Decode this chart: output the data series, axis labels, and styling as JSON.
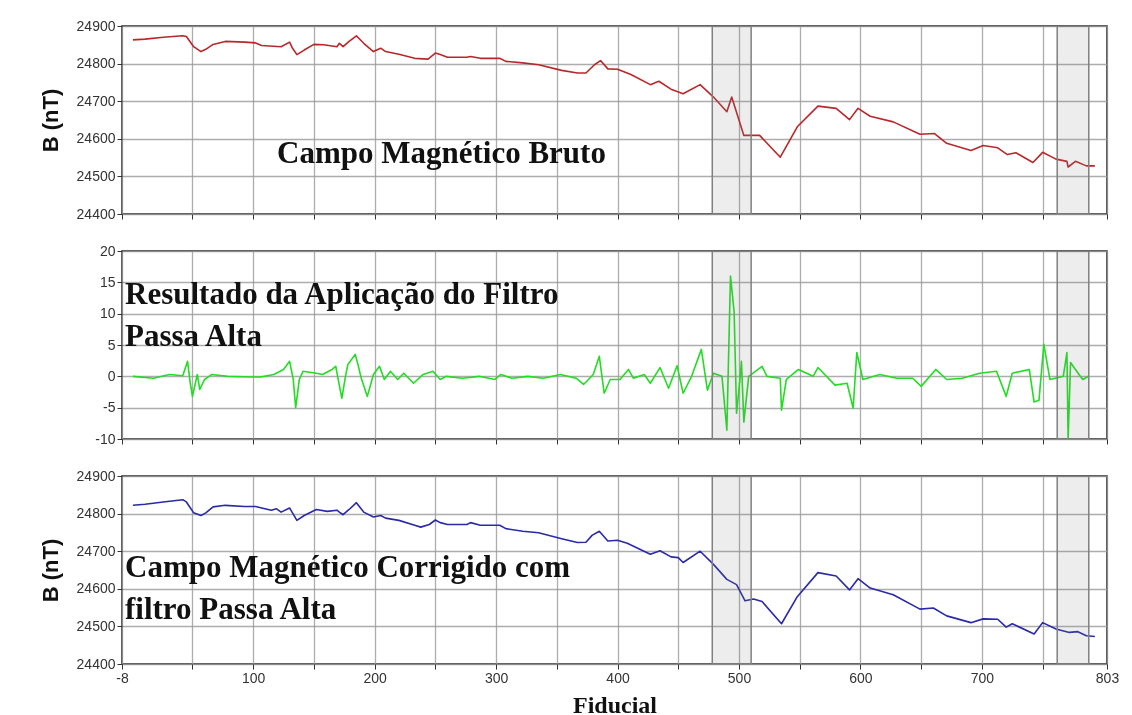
{
  "chart_data": [
    {
      "type": "line",
      "ylabel": "B (nT)",
      "annotations": [
        "Campo Magnético Bruto"
      ],
      "grid": true,
      "tick_labels": "y",
      "xlim": [
        -8,
        803
      ],
      "xticks": [
        -8,
        {
          "value": 50,
          "label": null
        },
        100,
        {
          "value": 150,
          "label": null
        },
        200,
        {
          "value": 250,
          "label": null
        },
        300,
        {
          "value": 350,
          "label": null
        },
        400,
        {
          "value": 450,
          "label": null
        },
        500,
        {
          "value": 550,
          "label": null
        },
        600,
        {
          "value": 650,
          "label": null
        },
        700,
        {
          "value": 750,
          "label": null
        },
        803
      ],
      "ylim": [
        24400,
        24900
      ],
      "yticks": [
        24400,
        24500,
        24600,
        24700,
        24800,
        24900
      ],
      "bands": [
        {
          "axis": "x",
          "from": 478,
          "to": 510,
          "color": "#808080"
        },
        {
          "axis": "x",
          "from": 762,
          "to": 788,
          "color": "#808080"
        }
      ],
      "x": [
        1,
        11,
        26,
        42,
        45,
        51,
        57,
        61,
        67,
        77,
        93,
        102,
        107,
        123,
        130,
        132,
        136,
        142,
        150,
        158,
        169,
        171,
        174,
        179,
        185,
        191,
        199,
        205,
        209,
        220,
        233,
        244,
        250,
        254,
        260,
        276,
        279,
        287,
        303,
        308,
        322,
        335,
        354,
        367,
        374,
        381,
        386,
        392,
        400,
        411,
        427,
        434,
        444,
        454,
        468,
        479,
        490,
        494,
        504,
        517,
        534,
        548,
        565,
        580,
        591,
        598,
        608,
        627,
        649,
        661,
        671,
        691,
        701,
        713,
        721,
        728,
        742,
        750,
        761,
        770,
        771,
        777,
        786,
        793
      ],
      "series": [
        {
          "color": "#b8282a",
          "values": [
            24863,
            24865,
            24870,
            24874,
            24872,
            24845,
            24832,
            24838,
            24851,
            24859,
            24857,
            24855,
            24848,
            24845,
            24857,
            24843,
            24824,
            24836,
            24851,
            24850,
            24845,
            24854,
            24845,
            24859,
            24874,
            24854,
            24832,
            24841,
            24832,
            24825,
            24814,
            24812,
            24828,
            24824,
            24817,
            24817,
            24819,
            24814,
            24814,
            24806,
            24802,
            24797,
            24782,
            24775,
            24775,
            24797,
            24808,
            24786,
            24785,
            24771,
            24744,
            24753,
            24732,
            24720,
            24744,
            24711,
            24672,
            24711,
            24609,
            24609,
            24551,
            24632,
            24687,
            24681,
            24651,
            24681,
            24660,
            24645,
            24612,
            24614,
            24588,
            24569,
            24582,
            24576,
            24558,
            24563,
            24537,
            24564,
            24546,
            24540,
            24525,
            24540,
            24528,
            24528
          ]
        }
      ]
    },
    {
      "type": "line",
      "annotations": [
        "Resultado da Aplicação do Filtro\nPassa Alta"
      ],
      "grid": true,
      "tick_labels": "y",
      "xlim": [
        -8,
        803
      ],
      "xticks": [
        -8,
        {
          "value": 50,
          "label": null
        },
        100,
        {
          "value": 150,
          "label": null
        },
        200,
        {
          "value": 250,
          "label": null
        },
        300,
        {
          "value": 350,
          "label": null
        },
        400,
        {
          "value": 450,
          "label": null
        },
        500,
        {
          "value": 550,
          "label": null
        },
        600,
        {
          "value": 650,
          "label": null
        },
        700,
        {
          "value": 750,
          "label": null
        },
        803
      ],
      "ylim": [
        -10,
        20
      ],
      "yticks": [
        -10,
        -5,
        0,
        5,
        10,
        15,
        20
      ],
      "bands": [
        {
          "axis": "x",
          "from": 478,
          "to": 510,
          "color": "#808080"
        },
        {
          "axis": "x",
          "from": 762,
          "to": 788,
          "color": "#808080"
        }
      ],
      "x": [
        1,
        18,
        31,
        42,
        46,
        48,
        50,
        54,
        56,
        60,
        66,
        79,
        98,
        106,
        117,
        125,
        130,
        133,
        135,
        138,
        141,
        152,
        157,
        165,
        168,
        170,
        173,
        176,
        178,
        184,
        186,
        189,
        194,
        199,
        204,
        208,
        213,
        219,
        224,
        232,
        240,
        248,
        254,
        259,
        272,
        286,
        299,
        304,
        313,
        326,
        339,
        353,
        366,
        372,
        380,
        385,
        389,
        394,
        402,
        409,
        413,
        422,
        427,
        435,
        442,
        449,
        454,
        461,
        469,
        474,
        479,
        486,
        490,
        493,
        496,
        498,
        501,
        502,
        504,
        508,
        519,
        523,
        534,
        535,
        539,
        549,
        561,
        565,
        579,
        589,
        594,
        597,
        602,
        616,
        630,
        643,
        650,
        662,
        671,
        684,
        698,
        712,
        720,
        725,
        739,
        743,
        747,
        751,
        756,
        767,
        770,
        771,
        773,
        777,
        783,
        788
      ],
      "series": [
        {
          "color": "#22dd22",
          "values": [
            0,
            -0.3,
            0.3,
            0.1,
            2.4,
            -0.8,
            -3.2,
            0.3,
            -2.1,
            -0.5,
            0.3,
            0,
            -0.1,
            -0.1,
            0.3,
            1.1,
            2.4,
            -0.5,
            -5,
            -0.5,
            0.8,
            0.5,
            0.3,
            1.1,
            1.6,
            -0.5,
            -3.5,
            0,
            1.9,
            3.5,
            2.1,
            -0.3,
            -3.2,
            0.3,
            1.6,
            -0.5,
            0.8,
            -0.5,
            0.5,
            -1.1,
            0.3,
            0.8,
            -0.5,
            0,
            -0.3,
            0,
            -0.5,
            0.3,
            -0.3,
            0,
            -0.3,
            0.3,
            -0.3,
            -1.3,
            0.3,
            3.2,
            -2.7,
            -0.5,
            -0.5,
            1.1,
            -0.3,
            0.3,
            -1.1,
            1.4,
            -1.9,
            1.7,
            -2.7,
            0,
            4.3,
            -2.2,
            0.5,
            0,
            -8.6,
            16,
            10.3,
            -5.9,
            0,
            2.4,
            -7.3,
            0,
            1.6,
            0,
            -0.3,
            -5.4,
            -0.5,
            1.1,
            0,
            1.4,
            -1.4,
            -1.1,
            -5.1,
            3.8,
            -0.5,
            0.3,
            -0.3,
            -0.3,
            -1.6,
            1.1,
            -0.5,
            -0.3,
            0.5,
            0.8,
            -3.2,
            0.5,
            1.1,
            -4.1,
            -3.8,
            5.1,
            -0.5,
            0,
            3.8,
            -10,
            2.2,
            1.1,
            -0.5,
            0
          ]
        }
      ]
    },
    {
      "type": "line",
      "ylabel": "B (nT)",
      "xlabel": "Fiducial",
      "annotations": [
        "Campo Magnético Corrigido com\nfiltro Passa Alta"
      ],
      "grid": true,
      "xlim": [
        -8,
        803
      ],
      "xticks": [
        -8,
        {
          "value": 50,
          "label": null
        },
        100,
        {
          "value": 150,
          "label": null
        },
        200,
        {
          "value": 250,
          "label": null
        },
        300,
        {
          "value": 350,
          "label": null
        },
        400,
        {
          "value": 450,
          "label": null
        },
        500,
        {
          "value": 550,
          "label": null
        },
        600,
        {
          "value": 650,
          "label": null
        },
        700,
        {
          "value": 750,
          "label": null
        },
        803
      ],
      "ylim": [
        24400,
        24900
      ],
      "yticks": [
        24400,
        24500,
        24600,
        24700,
        24800,
        24900
      ],
      "bands": [
        {
          "axis": "x",
          "from": 478,
          "to": 510,
          "color": "#808080"
        },
        {
          "axis": "x",
          "from": 762,
          "to": 788,
          "color": "#808080"
        }
      ],
      "x": [
        1,
        11,
        26,
        42,
        45,
        51,
        57,
        61,
        67,
        77,
        93,
        102,
        107,
        115,
        119,
        123,
        130,
        132,
        136,
        142,
        152,
        161,
        169,
        171,
        174,
        179,
        185,
        191,
        199,
        205,
        209,
        220,
        233,
        238,
        245,
        250,
        254,
        260,
        276,
        279,
        287,
        303,
        308,
        322,
        335,
        354,
        367,
        374,
        379,
        385,
        392,
        400,
        408,
        427,
        435,
        444,
        450,
        454,
        468,
        479,
        490,
        498,
        505,
        512,
        519,
        535,
        548,
        565,
        580,
        591,
        598,
        608,
        627,
        649,
        660,
        671,
        691,
        701,
        713,
        720,
        725,
        743,
        750,
        761,
        772,
        779,
        786,
        793
      ],
      "series": [
        {
          "color": "#2a2aa8",
          "values": [
            24822,
            24825,
            24831,
            24837,
            24831,
            24802,
            24795,
            24802,
            24818,
            24822,
            24819,
            24819,
            24815,
            24809,
            24813,
            24804,
            24815,
            24804,
            24782,
            24795,
            24811,
            24806,
            24809,
            24804,
            24797,
            24811,
            24829,
            24804,
            24791,
            24795,
            24788,
            24782,
            24769,
            24764,
            24771,
            24783,
            24776,
            24771,
            24771,
            24776,
            24769,
            24769,
            24760,
            24753,
            24749,
            24733,
            24723,
            24724,
            24742,
            24753,
            24727,
            24729,
            24721,
            24692,
            24701,
            24685,
            24683,
            24670,
            24700,
            24665,
            24625,
            24611,
            24568,
            24573,
            24566,
            24507,
            24579,
            24643,
            24634,
            24597,
            24627,
            24602,
            24584,
            24546,
            24549,
            24528,
            24510,
            24520,
            24519,
            24498,
            24507,
            24480,
            24510,
            24493,
            24484,
            24486,
            24475,
            24473
          ]
        }
      ]
    }
  ]
}
